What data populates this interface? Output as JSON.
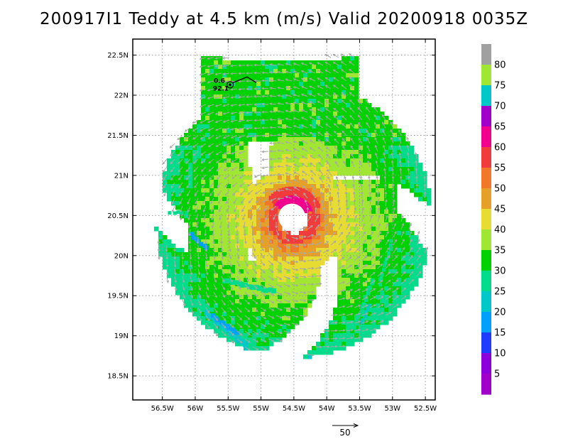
{
  "title": "200917I1 Teddy at 4.5 km (m/s) Valid 20200918 0035Z",
  "map": {
    "lat_ticks": [
      {
        "value": 22.5,
        "label": "22.5N"
      },
      {
        "value": 22.0,
        "label": "22N"
      },
      {
        "value": 21.5,
        "label": "21.5N"
      },
      {
        "value": 21.0,
        "label": "21N"
      },
      {
        "value": 20.5,
        "label": "20.5N"
      },
      {
        "value": 20.0,
        "label": "20N"
      },
      {
        "value": 19.5,
        "label": "19.5N"
      },
      {
        "value": 19.0,
        "label": "19N"
      },
      {
        "value": 18.5,
        "label": "18.5N"
      }
    ],
    "lon_ticks": [
      {
        "value": -56.5,
        "label": "56.5W"
      },
      {
        "value": -56.0,
        "label": "56W"
      },
      {
        "value": -55.5,
        "label": "55.5W"
      },
      {
        "value": -55.0,
        "label": "55W"
      },
      {
        "value": -54.5,
        "label": "54.5W"
      },
      {
        "value": -54.0,
        "label": "54W"
      },
      {
        "value": -53.5,
        "label": "53.5W"
      },
      {
        "value": -53.0,
        "label": "53W"
      },
      {
        "value": -52.5,
        "label": "52.5W"
      }
    ],
    "lon_range": [
      -56.95,
      -52.35
    ],
    "lat_range": [
      18.2,
      22.7
    ],
    "grid": true,
    "storm_center": {
      "lon": -54.53,
      "lat": 20.48
    },
    "station": {
      "lon": -55.47,
      "lat": 22.13,
      "label_top": "0.6",
      "label_bottom": "92.1"
    },
    "reference_vector": {
      "label": "50"
    }
  },
  "colorbar": {
    "labels": [
      "80",
      "75",
      "70",
      "65",
      "60",
      "55",
      "50",
      "45",
      "40",
      "35",
      "30",
      "25",
      "20",
      "15",
      "10",
      "5"
    ],
    "colors": [
      "#a0a0a0",
      "#a0e632",
      "#00c8c8",
      "#a000c8",
      "#f0008c",
      "#f03c3c",
      "#f07828",
      "#e6a028",
      "#e6dc32",
      "#a0e632",
      "#00d200",
      "#00dc8c",
      "#00c8c8",
      "#00a0ff",
      "#1e3cff",
      "#8c00dc",
      "#a000c8"
    ]
  }
}
